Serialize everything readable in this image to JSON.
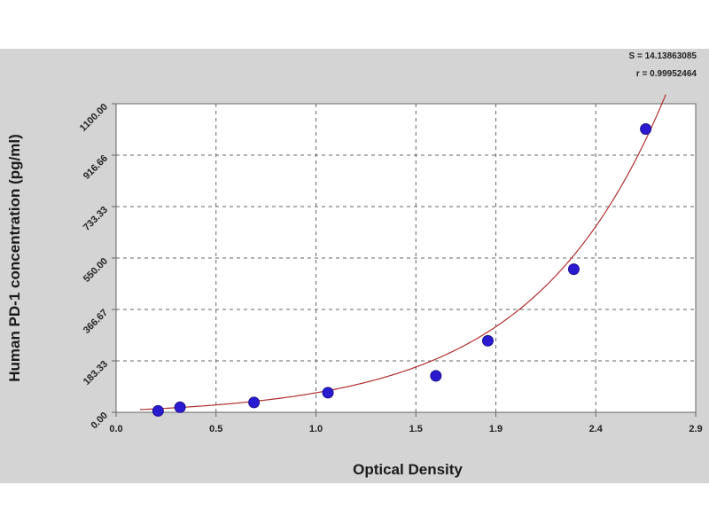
{
  "chart_data": {
    "type": "scatter",
    "xlabel": "Optical Density",
    "ylabel": "Human PD-1 concentration (pg/ml)",
    "xlim": [
      0,
      2.9
    ],
    "ylim": [
      0,
      1100
    ],
    "x_ticks": [
      {
        "value": 0.0,
        "label": "0.0"
      },
      {
        "value": 0.5,
        "label": "0.5"
      },
      {
        "value": 1.0,
        "label": "1.0"
      },
      {
        "value": 1.5,
        "label": "1.5"
      },
      {
        "value": 1.9,
        "label": "1.9"
      },
      {
        "value": 2.4,
        "label": "2.4"
      },
      {
        "value": 2.9,
        "label": "2.9"
      }
    ],
    "y_ticks": [
      {
        "value": 0,
        "label": "0.00"
      },
      {
        "value": 183.33,
        "label": "183.33"
      },
      {
        "value": 366.67,
        "label": "366.67"
      },
      {
        "value": 550,
        "label": "550.00"
      },
      {
        "value": 733.33,
        "label": "733.33"
      },
      {
        "value": 916.66,
        "label": "916.66"
      },
      {
        "value": 1100,
        "label": "1100.00"
      }
    ],
    "grid": true,
    "stats": [
      "S = 14.13863085",
      "r = 0.99952464"
    ],
    "points": [
      {
        "x": 0.21,
        "y": 5
      },
      {
        "x": 0.32,
        "y": 18
      },
      {
        "x": 0.69,
        "y": 35
      },
      {
        "x": 1.06,
        "y": 70
      },
      {
        "x": 1.6,
        "y": 130
      },
      {
        "x": 1.86,
        "y": 255
      },
      {
        "x": 2.29,
        "y": 510
      },
      {
        "x": 2.65,
        "y": 1010
      }
    ],
    "fit_curve": {
      "a": 0.57,
      "b": 0.2,
      "c": 60,
      "d": 2.09
    },
    "colors": {
      "point": "#2a1ad0",
      "curve": "#b03030",
      "grid": "#666666",
      "axis": "#666666"
    }
  }
}
